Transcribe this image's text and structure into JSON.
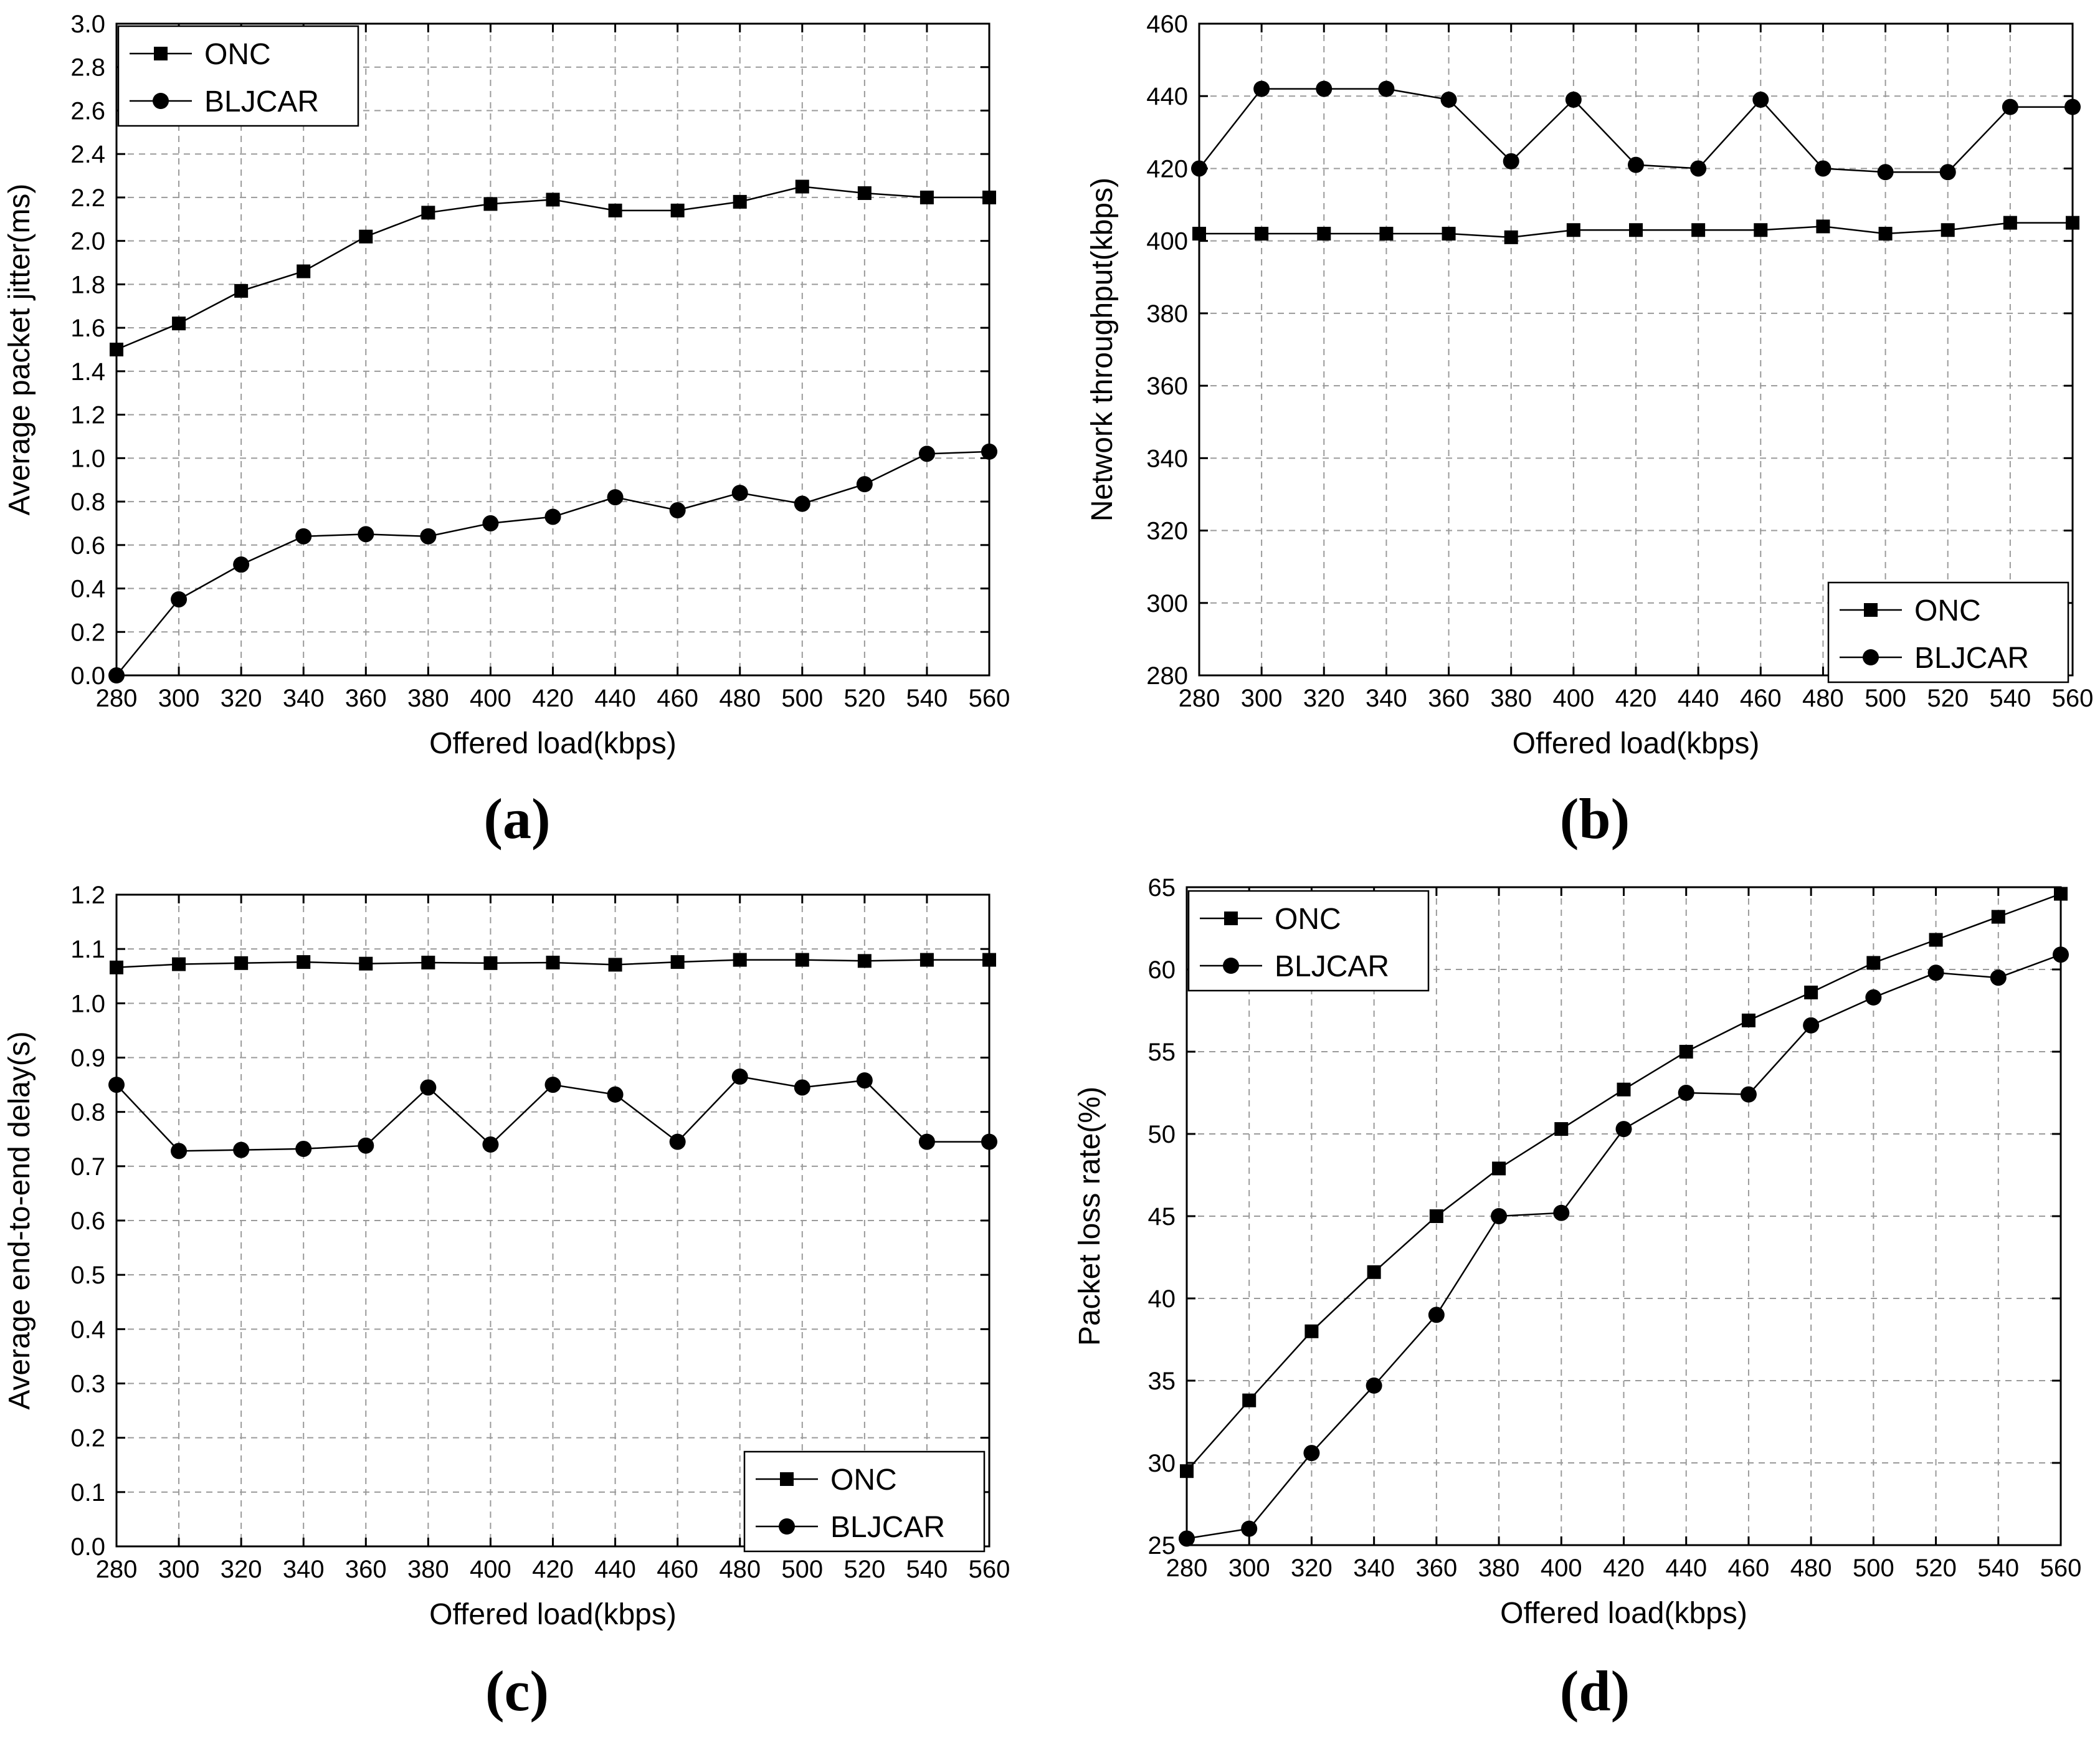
{
  "figure": {
    "x_values": [
      280,
      300,
      320,
      340,
      360,
      380,
      400,
      420,
      440,
      460,
      480,
      500,
      520,
      540,
      560
    ]
  },
  "chart_data": [
    {
      "type": "line",
      "panel_label": "(a)",
      "caption_open": "(",
      "caption_letter": "a",
      "caption_close": ")",
      "title": "",
      "xlabel": "Offered load(kbps)",
      "ylabel": "Average packet jitter(ms)",
      "xlim": [
        280,
        560
      ],
      "ylim": [
        0.0,
        3.0
      ],
      "x_ticks": [
        "280",
        "300",
        "320",
        "340",
        "360",
        "380",
        "400",
        "420",
        "440",
        "460",
        "480",
        "500",
        "520",
        "540",
        "560"
      ],
      "y_ticks": [
        "0.0",
        "0.2",
        "0.4",
        "0.6",
        "0.8",
        "1.0",
        "1.2",
        "1.4",
        "1.6",
        "1.8",
        "2.0",
        "2.2",
        "2.4",
        "2.6",
        "2.8",
        "3.0"
      ],
      "grid": true,
      "legend_position": "top-left",
      "series": [
        {
          "name": "ONC",
          "marker": "square",
          "values": [
            1.5,
            1.62,
            1.77,
            1.86,
            2.02,
            2.13,
            2.17,
            2.19,
            2.14,
            2.14,
            2.18,
            2.25,
            2.22,
            2.2,
            2.2
          ]
        },
        {
          "name": "BLJCAR",
          "marker": "circle",
          "values": [
            0.0,
            0.35,
            0.51,
            0.64,
            0.65,
            0.64,
            0.7,
            0.73,
            0.82,
            0.76,
            0.84,
            0.79,
            0.88,
            1.02,
            1.03
          ]
        }
      ]
    },
    {
      "type": "line",
      "panel_label": "(b)",
      "caption_open": "(",
      "caption_letter": "b",
      "caption_close": ")",
      "title": "",
      "xlabel": "Offered load(kbps)",
      "ylabel": "Network throughput(kbps)",
      "xlim": [
        280,
        560
      ],
      "ylim": [
        280,
        460
      ],
      "x_ticks": [
        "280",
        "300",
        "320",
        "340",
        "360",
        "380",
        "400",
        "420",
        "440",
        "460",
        "480",
        "500",
        "520",
        "540",
        "560"
      ],
      "y_ticks": [
        "280",
        "300",
        "320",
        "340",
        "360",
        "380",
        "400",
        "420",
        "440",
        "460"
      ],
      "grid": true,
      "legend_position": "bottom-right",
      "series": [
        {
          "name": "ONC",
          "marker": "square",
          "values": [
            402,
            402,
            402,
            402,
            402,
            401,
            403,
            403,
            403,
            403,
            404,
            402,
            403,
            405,
            405
          ]
        },
        {
          "name": "BLJCAR",
          "marker": "circle",
          "values": [
            420,
            442,
            442,
            442,
            439,
            422,
            439,
            421,
            420,
            439,
            420,
            419,
            419,
            437,
            437
          ]
        }
      ]
    },
    {
      "type": "line",
      "panel_label": "(c)",
      "caption_open": "(",
      "caption_letter": "c",
      "caption_close": ")",
      "title": "",
      "xlabel": "Offered load(kbps)",
      "ylabel": "Average end-to-end delay(s)",
      "xlim": [
        280,
        560
      ],
      "ylim": [
        0.0,
        1.2
      ],
      "x_ticks": [
        "280",
        "300",
        "320",
        "340",
        "360",
        "380",
        "400",
        "420",
        "440",
        "460",
        "480",
        "500",
        "520",
        "540",
        "560"
      ],
      "y_ticks": [
        "0.0",
        "0.1",
        "0.2",
        "0.3",
        "0.4",
        "0.5",
        "0.6",
        "0.7",
        "0.8",
        "0.9",
        "1.0",
        "1.1",
        "1.2"
      ],
      "grid": true,
      "legend_position": "bottom-right",
      "series": [
        {
          "name": "ONC",
          "marker": "square",
          "values": [
            1.066,
            1.072,
            1.074,
            1.076,
            1.073,
            1.075,
            1.074,
            1.075,
            1.071,
            1.076,
            1.08,
            1.08,
            1.078,
            1.08,
            1.08
          ]
        },
        {
          "name": "BLJCAR",
          "marker": "circle",
          "values": [
            0.85,
            0.728,
            0.73,
            0.732,
            0.738,
            0.845,
            0.74,
            0.85,
            0.832,
            0.745,
            0.865,
            0.845,
            0.858,
            0.745,
            0.745
          ]
        }
      ]
    },
    {
      "type": "line",
      "panel_label": "(d)",
      "caption_open": "(",
      "caption_letter": "d",
      "caption_close": ")",
      "title": "",
      "xlabel": "Offered load(kbps)",
      "ylabel": "Packet loss rate(%)",
      "xlim": [
        280,
        560
      ],
      "ylim": [
        25,
        65
      ],
      "x_ticks": [
        "280",
        "300",
        "320",
        "340",
        "360",
        "380",
        "400",
        "420",
        "440",
        "460",
        "480",
        "500",
        "520",
        "540",
        "560"
      ],
      "y_ticks": [
        "25",
        "30",
        "35",
        "40",
        "45",
        "50",
        "55",
        "60",
        "65"
      ],
      "grid": true,
      "legend_position": "top-left",
      "series": [
        {
          "name": "ONC",
          "marker": "square",
          "values": [
            29.5,
            33.8,
            38.0,
            41.6,
            45.0,
            47.9,
            50.3,
            52.7,
            55.0,
            56.9,
            58.6,
            60.4,
            61.8,
            63.2,
            64.6
          ]
        },
        {
          "name": "BLJCAR",
          "marker": "circle",
          "values": [
            25.4,
            26.0,
            30.6,
            34.7,
            39.0,
            45.0,
            45.2,
            50.3,
            52.5,
            52.4,
            56.6,
            58.3,
            59.8,
            59.5,
            60.9
          ]
        }
      ]
    }
  ]
}
